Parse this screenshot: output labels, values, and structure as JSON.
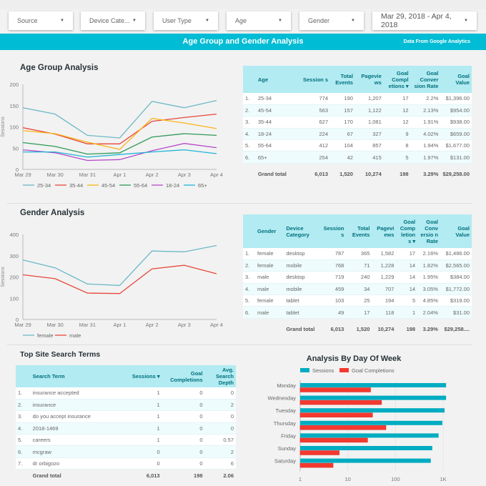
{
  "filters": [
    {
      "label": "Source"
    },
    {
      "label": "Device Cate..."
    },
    {
      "label": "User Type"
    },
    {
      "label": "Age"
    },
    {
      "label": "Gender"
    },
    {
      "label": "Mar 29, 2018 - Apr 4, 2018"
    }
  ],
  "banner": {
    "title": "Age Group and Gender Analysis",
    "subtitle": "Data From Google Analytics"
  },
  "age_section": {
    "title": "Age Group Analysis"
  },
  "gender_section": {
    "title": "Gender Analysis"
  },
  "search_section": {
    "title": "Top Site Search Terms"
  },
  "day_section": {
    "title": "Analysis By Day Of Week"
  },
  "age_table": {
    "headers": [
      "",
      "Age",
      "Session s",
      "Total Events",
      "Pagevie ws",
      "Goal Compl etions ▾",
      "Goal Conver sion Rate",
      "Goal Value"
    ],
    "rows": [
      [
        "1.",
        "25-34",
        "774",
        "190",
        "1,207",
        "17",
        "2.2%",
        "$1,396.00"
      ],
      [
        "2.",
        "45-54",
        "563",
        "157",
        "1,122",
        "12",
        "2.13%",
        "$954.00"
      ],
      [
        "3.",
        "35-44",
        "627",
        "170",
        "1,081",
        "12",
        "1.91%",
        "$938.00"
      ],
      [
        "4.",
        "18-24",
        "224",
        "67",
        "327",
        "9",
        "4.02%",
        "$659.00"
      ],
      [
        "5.",
        "55-64",
        "412",
        "104",
        "857",
        "8",
        "1.94%",
        "$1,677.00"
      ],
      [
        "6.",
        "65+",
        "254",
        "42",
        "415",
        "5",
        "1.97%",
        "$131.00"
      ]
    ],
    "total": [
      "",
      "Grand total",
      "6,013",
      "1,520",
      "10,274",
      "198",
      "3.29%",
      "$29,258.00"
    ]
  },
  "gender_table": {
    "headers": [
      "",
      "Gender",
      "Device Category",
      "Session s",
      "Total Events",
      "Pagevi ews",
      "Goal Comp letion s ▾",
      "Goal Conv ersio n Rate",
      "Goal Value"
    ],
    "rows": [
      [
        "1.",
        "female",
        "desktop",
        "787",
        "365",
        "1,582",
        "17",
        "2.16%",
        "$1,486.00"
      ],
      [
        "2.",
        "female",
        "mobile",
        "768",
        "71",
        "1,228",
        "14",
        "1.82%",
        "$2,565.00"
      ],
      [
        "3.",
        "male",
        "desktop",
        "719",
        "240",
        "1,229",
        "14",
        "1.95%",
        "$384.00"
      ],
      [
        "4.",
        "male",
        "mobile",
        "459",
        "34",
        "707",
        "14",
        "3.05%",
        "$1,772.00"
      ],
      [
        "5.",
        "female",
        "tablet",
        "103",
        "25",
        "194",
        "5",
        "4.85%",
        "$319.00"
      ],
      [
        "6.",
        "male",
        "tablet",
        "49",
        "17",
        "118",
        "1",
        "2.04%",
        "$31.00"
      ]
    ],
    "total": [
      "",
      "",
      "Grand total",
      "6,013",
      "1,520",
      "10,274",
      "198",
      "3.29%",
      "$29,258...."
    ]
  },
  "search_table": {
    "headers": [
      "",
      "Search Term",
      "Sessions ▾",
      "Goal Completions",
      "Avg. Search Depth"
    ],
    "rows": [
      [
        "1.",
        "insurance accepted",
        "1",
        "0",
        "0"
      ],
      [
        "2.",
        "insurance",
        "1",
        "0",
        "2"
      ],
      [
        "3.",
        "do you accept insurance",
        "1",
        "0",
        "0"
      ],
      [
        "4.",
        "2018-1469",
        "1",
        "0",
        "0"
      ],
      [
        "5.",
        "careers",
        "1",
        "0",
        "0.57"
      ],
      [
        "6.",
        "mcgraw",
        "0",
        "0",
        "2"
      ],
      [
        "7.",
        "dr orbigozo",
        "0",
        "0",
        "6"
      ]
    ],
    "total": [
      "",
      "Grand total",
      "6,013",
      "198",
      "2.06"
    ]
  },
  "chart_data": [
    {
      "type": "line",
      "ylabel": "Sessions",
      "ylim": [
        0,
        200
      ],
      "yticks": [
        "0",
        "50",
        "100",
        "150",
        "200"
      ],
      "categories": [
        "Mar 29",
        "Mar 30",
        "Mar 31",
        "Apr 1",
        "Apr 2",
        "Apr 3",
        "Apr 4"
      ],
      "legend": "bottom",
      "series": [
        {
          "name": "25-34",
          "color": "#6cb8c6",
          "values": [
            145,
            130,
            80,
            74,
            160,
            145,
            162
          ]
        },
        {
          "name": "35-44",
          "color": "#e8473a",
          "values": [
            98,
            83,
            60,
            60,
            113,
            122,
            130
          ]
        },
        {
          "name": "45-54",
          "color": "#f9b51a",
          "values": [
            91,
            84,
            64,
            47,
            120,
            109,
            96
          ]
        },
        {
          "name": "55-64",
          "color": "#2e9a57",
          "values": [
            63,
            54,
            36,
            39,
            76,
            84,
            80
          ]
        },
        {
          "name": "18-24",
          "color": "#b648c9",
          "values": [
            46,
            39,
            21,
            23,
            44,
            61,
            51
          ]
        },
        {
          "name": "65+",
          "color": "#1fb5d6",
          "values": [
            41,
            41,
            29,
            35,
            41,
            46,
            37
          ]
        }
      ]
    },
    {
      "type": "line",
      "ylabel": "Sessions",
      "ylim": [
        0,
        400
      ],
      "yticks": [
        "0",
        "100",
        "200",
        "300",
        "400"
      ],
      "categories": [
        "Mar 29",
        "Mar 30",
        "Mar 31",
        "Apr 1",
        "Apr 2",
        "Apr 3",
        "Apr 4"
      ],
      "legend": "bottom",
      "series": [
        {
          "name": "female",
          "color": "#6cb8c6",
          "values": [
            280,
            243,
            167,
            160,
            322,
            318,
            348
          ]
        },
        {
          "name": "male",
          "color": "#e8473a",
          "values": [
            210,
            192,
            124,
            122,
            238,
            255,
            215
          ]
        }
      ]
    },
    {
      "type": "bar",
      "orientation": "horizontal",
      "xscale": "log",
      "xlim": [
        1,
        1000
      ],
      "xticks": [
        "1",
        "10",
        "100",
        "1K"
      ],
      "legend": "top",
      "categories": [
        "Monday",
        "Wednesday",
        "Tuesday",
        "Thursday",
        "Friday",
        "Sunday",
        "Saturday"
      ],
      "series": [
        {
          "name": "Sessions",
          "color": "#00acc1",
          "values": [
            1150,
            1150,
            1070,
            960,
            800,
            590,
            550
          ]
        },
        {
          "name": "Goal Completions",
          "color": "#f4392e",
          "values": [
            30,
            51,
            33,
            63,
            26,
            6.6,
            4.9
          ]
        }
      ]
    }
  ]
}
